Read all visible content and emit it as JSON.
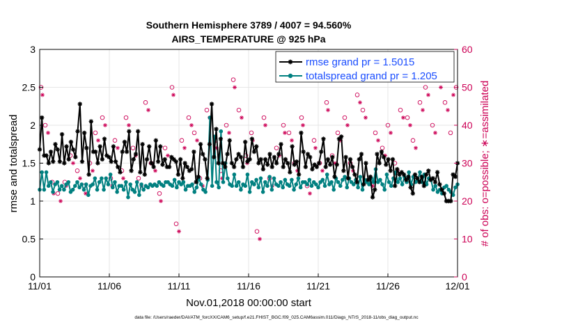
{
  "chart_data": {
    "type": "line",
    "title": "Southern Hemisphere 3789 / 4007 = 94.560%",
    "subtitle": "AIRS_TEMPERATURE @ 925 hPa",
    "xlabel": "Nov.01,2018 00:00:00 start",
    "ylabel": "rmse and totalspread",
    "ylabel_right": "# of obs: o=possible; ∗=assimilated",
    "x_ticks": [
      "11/01",
      "11/06",
      "11/11",
      "11/16",
      "11/21",
      "11/26",
      "12/01"
    ],
    "xlim": [
      0,
      30
    ],
    "ylim": [
      0,
      3
    ],
    "y_ticks": [
      "0",
      "0.5",
      "1",
      "1.5",
      "2",
      "2.5",
      "3"
    ],
    "ylim_right": [
      0,
      60
    ],
    "y_ticks_right": [
      "0",
      "10",
      "20",
      "30",
      "40",
      "50",
      "60"
    ],
    "grid": true,
    "legend_position": "top-right",
    "footnote": "data file: /Users/raeder/DAI/ATM_forcXX/CAM6_setup/f.e21.FHIST_BGC.f09_025.CAM6assim.011/Diags_NTrS_2018-11/obs_diag_output.nc",
    "colors": {
      "rmse": "#000000",
      "spread": "#008080",
      "obs": "#cc0055",
      "legend_text": "#1a4dff"
    },
    "series": [
      {
        "name": "rmse grand pr = 1.5015",
        "axis": "left",
        "values": [
          1.68,
          2.1,
          1.6,
          1.6,
          1.5,
          1.65,
          1.52,
          1.75,
          1.68,
          1.52,
          1.88,
          1.5,
          1.72,
          1.55,
          1.78,
          1.68,
          1.58,
          1.92,
          2.28,
          1.52,
          1.9,
          1.7,
          1.35,
          2.05,
          1.65,
          1.65,
          1.5,
          1.72,
          1.55,
          1.82,
          1.6,
          1.58,
          1.52,
          1.72,
          1.52,
          1.45,
          1.38,
          1.65,
          1.78,
          1.65,
          1.92,
          1.4,
          1.55,
          1.62,
          1.92,
          1.38,
          1.75,
          1.35,
          1.55,
          1.72,
          1.5,
          1.45,
          1.8,
          1.52,
          1.72,
          1.48,
          1.55,
          1.45,
          1.45,
          1.58,
          1.55,
          1.52,
          1.35,
          1.55,
          1.3,
          1.5,
          1.45,
          1.4,
          1.42,
          1.65,
          1.25,
          1.32,
          1.75,
          1.62,
          1.55,
          1.3,
          1.75,
          2.28,
          1.58,
          1.95,
          1.5,
          1.82,
          1.5,
          1.45,
          1.62,
          1.8,
          1.5,
          1.45,
          1.55,
          1.62,
          1.58,
          1.45,
          1.78,
          1.52,
          1.55,
          1.82,
          1.65,
          1.72,
          1.5,
          1.55,
          1.42,
          1.55,
          1.48,
          1.62,
          1.45,
          1.58,
          1.5,
          1.62,
          1.75,
          1.45,
          1.55,
          1.5,
          1.38,
          1.72,
          1.48,
          1.52,
          1.35,
          1.9,
          1.65,
          1.45,
          1.62,
          1.58,
          1.42,
          1.48,
          1.45,
          1.5,
          1.65,
          1.82,
          1.45,
          1.55,
          1.48,
          1.58,
          1.32,
          1.48,
          1.82,
          1.85,
          1.4,
          1.58,
          1.3,
          1.55,
          1.45,
          1.35,
          1.25,
          1.55,
          1.62,
          1.22,
          1.5,
          1.28,
          1.32,
          1.05,
          1.15,
          1.62,
          1.5,
          1.65,
          1.58,
          1.48,
          1.55,
          1.4,
          1.55,
          1.2,
          1.42,
          1.35,
          1.38,
          1.35,
          1.28,
          1.32,
          1.18,
          1.1,
          1.35,
          1.3,
          1.25,
          1.32,
          1.2,
          1.35,
          1.4,
          1.28,
          1.3,
          1.25,
          1.38,
          1.22,
          1.15,
          1.1,
          1.0,
          1.0,
          1.0,
          1.35,
          1.32,
          1.5
        ]
      },
      {
        "name": "totalspread grand pr = 1.205",
        "axis": "left",
        "values": [
          1.15,
          1.38,
          1.15,
          1.38,
          1.2,
          1.25,
          1.12,
          1.22,
          1.25,
          1.15,
          1.2,
          1.15,
          1.22,
          1.25,
          1.12,
          1.15,
          1.2,
          1.25,
          1.18,
          1.22,
          1.15,
          1.22,
          1.08,
          1.2,
          1.22,
          1.3,
          1.15,
          1.25,
          1.3,
          1.15,
          1.3,
          1.22,
          1.35,
          1.18,
          1.25,
          1.12,
          1.2,
          1.2,
          1.15,
          1.25,
          1.05,
          1.22,
          1.15,
          1.12,
          1.25,
          1.08,
          1.22,
          1.15,
          1.2,
          1.18,
          1.22,
          1.2,
          1.22,
          1.2,
          1.25,
          1.22,
          1.2,
          1.25,
          1.25,
          1.22,
          1.2,
          1.28,
          1.18,
          1.25,
          1.22,
          1.25,
          1.15,
          1.2,
          1.2,
          1.22,
          1.12,
          1.18,
          1.3,
          1.22,
          1.15,
          1.12,
          1.28,
          2.1,
          1.2,
          1.85,
          1.25,
          1.18,
          1.92,
          1.25,
          1.5,
          1.3,
          1.22,
          1.2,
          1.35,
          1.2,
          1.25,
          1.15,
          1.22,
          1.2,
          1.35,
          1.12,
          1.25,
          1.22,
          1.28,
          1.18,
          1.3,
          1.12,
          1.25,
          1.2,
          1.32,
          1.15,
          1.3,
          1.22,
          1.2,
          1.25,
          1.18,
          1.28,
          1.22,
          1.2,
          1.28,
          1.15,
          1.22,
          1.3,
          1.18,
          1.25,
          1.25,
          1.22,
          1.28,
          1.2,
          1.25,
          1.22,
          1.18,
          1.25,
          1.28,
          1.2,
          1.35,
          1.22,
          1.25,
          1.15,
          1.3,
          1.25,
          1.2,
          1.28,
          1.32,
          1.18,
          1.3,
          1.25,
          1.22,
          1.28,
          1.18,
          1.32,
          1.15,
          1.28,
          1.25,
          1.22,
          1.3,
          1.25,
          1.42,
          1.25,
          1.28,
          1.22,
          1.15,
          1.35,
          1.25,
          1.2,
          1.3,
          1.38,
          1.25,
          1.3,
          1.22,
          1.32,
          1.25,
          1.38,
          1.22,
          1.32,
          1.25,
          1.28,
          1.38,
          1.25,
          1.35,
          1.22,
          1.3,
          1.28,
          1.15,
          1.2,
          1.12,
          1.15,
          1.1,
          1.18,
          1.2,
          1.15,
          1.12,
          1.08,
          1.18,
          1.22
        ]
      },
      {
        "name": "obs possible",
        "axis": "right",
        "marker": "circle",
        "x": [
          0.1,
          0.4,
          0.9,
          1.3,
          1.8,
          2.2,
          2.7,
          3.2,
          3.6,
          4.0,
          4.5,
          5.1,
          5.4,
          5.9,
          6.2,
          6.7,
          7.1,
          7.6,
          8.0,
          8.6,
          9.0,
          9.5,
          9.8,
          10.2,
          10.7,
          11.1,
          11.5,
          12.0,
          12.6,
          13.0,
          13.4,
          13.9,
          14.3,
          14.8,
          15.2,
          15.6,
          16.1,
          16.5,
          17.0,
          17.5,
          17.9,
          18.3,
          18.8,
          19.2,
          19.7,
          20.1,
          20.6,
          21.0,
          21.4,
          21.9,
          22.3,
          22.8,
          23.2,
          23.7,
          24.1,
          24.6,
          25.0,
          25.5,
          25.9,
          26.4,
          26.8,
          27.3,
          27.7,
          28.2,
          28.6,
          29.1,
          29.5,
          29.9
        ],
        "values": [
          50,
          40,
          25,
          22,
          25,
          32,
          28,
          24,
          30,
          38,
          42,
          26,
          36,
          28,
          42,
          34,
          26,
          46,
          30,
          22,
          34,
          50,
          14,
          36,
          42,
          38,
          26,
          44,
          36,
          28,
          40,
          52,
          44,
          32,
          38,
          12,
          42,
          26,
          34,
          40,
          38,
          30,
          42,
          24,
          36,
          30,
          46,
          32,
          38,
          42,
          30,
          48,
          44,
          26,
          38,
          34,
          40,
          30,
          44,
          42,
          36,
          46,
          50,
          40,
          52,
          46,
          38,
          50
        ]
      },
      {
        "name": "obs assimilated",
        "axis": "right",
        "marker": "star",
        "x": [
          0.2,
          0.6,
          1.0,
          1.5,
          1.9,
          2.4,
          2.9,
          3.3,
          3.8,
          4.2,
          4.7,
          5.2,
          5.6,
          6.0,
          6.4,
          6.9,
          7.3,
          7.8,
          8.3,
          8.7,
          9.2,
          9.6,
          10.0,
          10.4,
          10.9,
          11.3,
          11.7,
          12.2,
          12.7,
          13.1,
          13.6,
          14.0,
          14.5,
          14.9,
          15.3,
          15.8,
          16.2,
          16.7,
          17.2,
          17.6,
          18.1,
          18.5,
          18.9,
          19.4,
          19.8,
          20.3,
          20.7,
          21.2,
          21.6,
          22.1,
          22.5,
          23.0,
          23.4,
          23.9,
          24.3,
          24.8,
          25.2,
          25.7,
          26.1,
          26.6,
          27.0,
          27.5,
          27.9,
          28.4,
          28.8,
          29.3,
          29.7
        ],
        "values": [
          48,
          38,
          22,
          20,
          24,
          30,
          26,
          22,
          28,
          36,
          40,
          24,
          34,
          26,
          40,
          32,
          24,
          44,
          28,
          20,
          32,
          48,
          12,
          34,
          40,
          36,
          24,
          42,
          34,
          26,
          38,
          50,
          42,
          30,
          36,
          10,
          40,
          24,
          32,
          38,
          36,
          28,
          40,
          22,
          34,
          28,
          44,
          30,
          36,
          40,
          28,
          46,
          42,
          24,
          36,
          32,
          38,
          28,
          42,
          40,
          34,
          44,
          48,
          38,
          50,
          44,
          48
        ]
      }
    ]
  }
}
